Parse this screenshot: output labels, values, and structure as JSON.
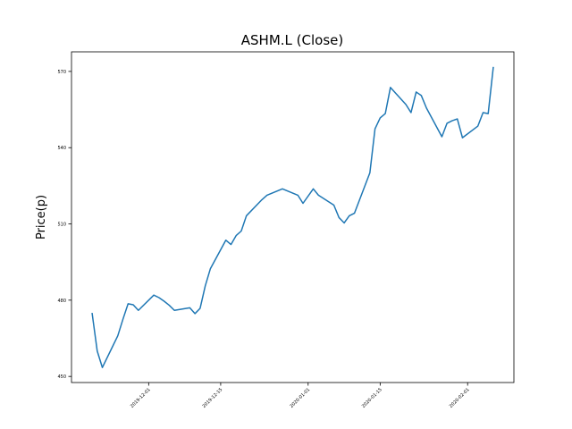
{
  "chart_data": {
    "type": "line",
    "title": "ASHM.L (Close)",
    "y_label": "Price(p)",
    "x": [
      "2019-11-20",
      "2019-11-21",
      "2019-11-22",
      "2019-11-25",
      "2019-11-26",
      "2019-11-27",
      "2019-11-28",
      "2019-11-29",
      "2019-12-02",
      "2019-12-03",
      "2019-12-04",
      "2019-12-05",
      "2019-12-06",
      "2019-12-09",
      "2019-12-10",
      "2019-12-11",
      "2019-12-12",
      "2019-12-13",
      "2019-12-16",
      "2019-12-17",
      "2019-12-18",
      "2019-12-19",
      "2019-12-20",
      "2019-12-23",
      "2019-12-24",
      "2019-12-27",
      "2019-12-30",
      "2019-12-31",
      "2020-01-02",
      "2020-01-03",
      "2020-01-06",
      "2020-01-07",
      "2020-01-08",
      "2020-01-09",
      "2020-01-10",
      "2020-01-13",
      "2020-01-14",
      "2020-01-15",
      "2020-01-16",
      "2020-01-17",
      "2020-01-20",
      "2020-01-21",
      "2020-01-22",
      "2020-01-23",
      "2020-01-24",
      "2020-01-27",
      "2020-01-28",
      "2020-01-29",
      "2020-01-30",
      "2020-01-31",
      "2020-02-03",
      "2020-02-04",
      "2020-02-05",
      "2020-02-06"
    ],
    "series": [
      {
        "name": "Close",
        "color": "#1f77b4",
        "values": [
          475,
          460,
          453.5,
          466,
          472.5,
          478.6,
          478.2,
          476,
          482,
          481,
          479.6,
          478,
          476,
          477,
          474.7,
          476.8,
          485.6,
          492.4,
          503.6,
          501.9,
          505.4,
          507.2,
          513.2,
          519.5,
          521.3,
          523.8,
          521.3,
          518.1,
          523.8,
          521.3,
          517.4,
          512.5,
          510.4,
          513.2,
          514.2,
          530.1,
          547.4,
          551.7,
          553.4,
          563.7,
          557,
          553.8,
          561.9,
          560.5,
          555.6,
          544.3,
          549.6,
          550.6,
          551.3,
          543.9,
          548.5,
          553.8,
          553.4,
          571.8
        ]
      }
    ],
    "xlim": [
      "2019-11-16",
      "2020-02-10"
    ],
    "xticks": [
      "2019-12-01",
      "2019-12-15",
      "2020-01-01",
      "2020-01-15",
      "2020-02-01"
    ],
    "ylim": [
      447.6,
      577.7
    ],
    "yticks": [
      450,
      480,
      510,
      540,
      570
    ]
  }
}
